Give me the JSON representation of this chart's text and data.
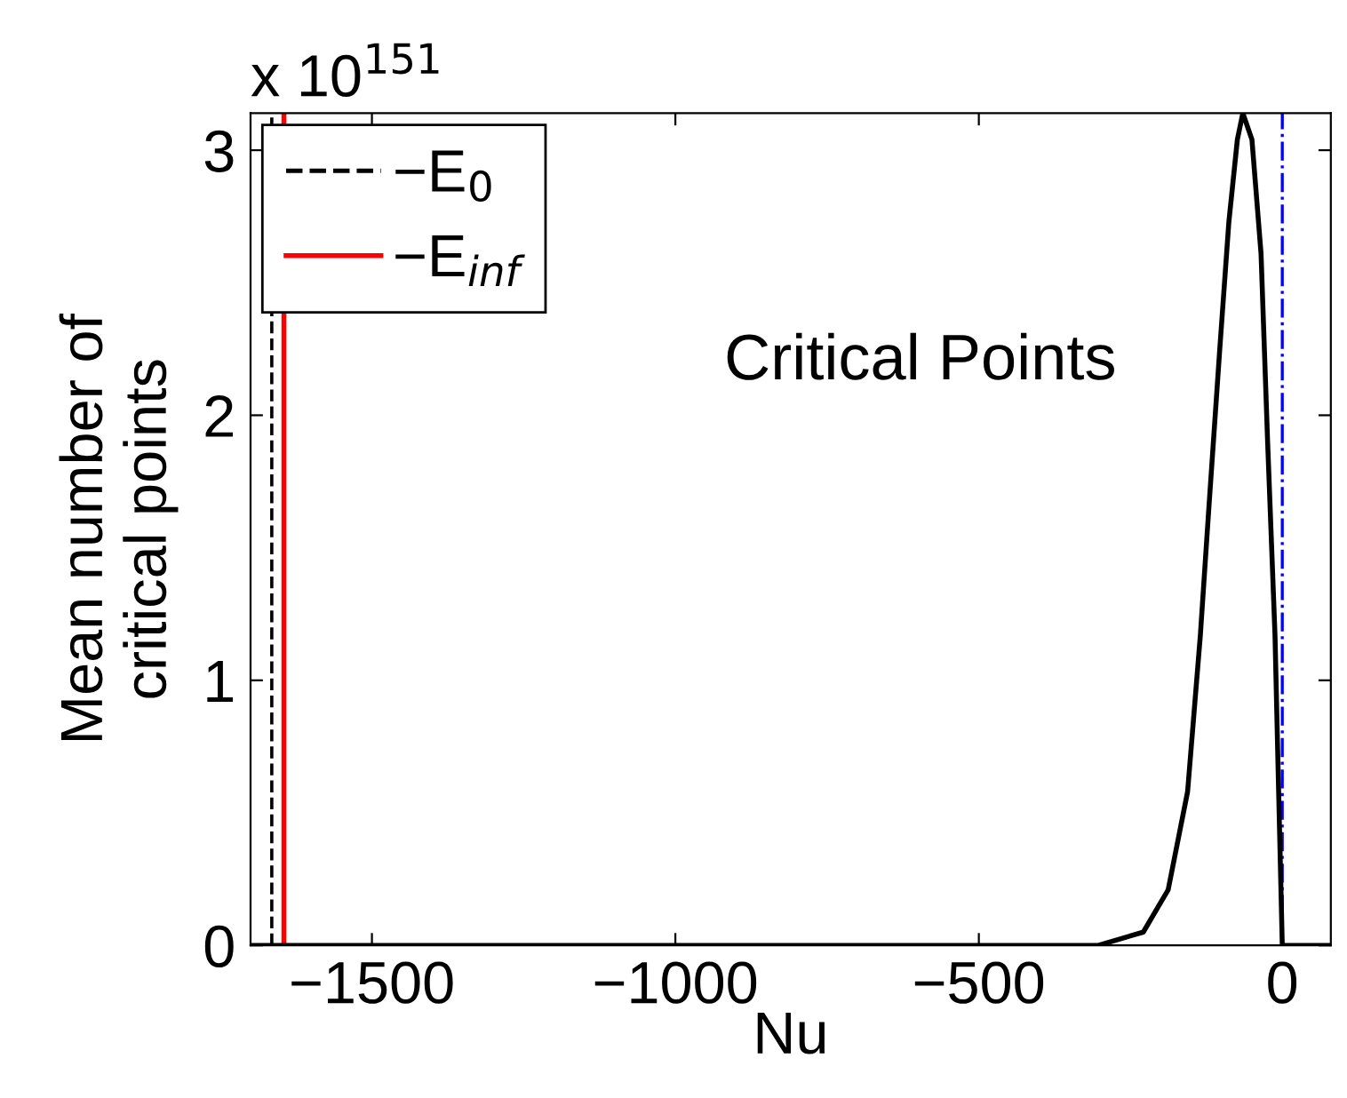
{
  "chart_data": {
    "type": "line",
    "title": "Critical Points",
    "xlabel": "Nu",
    "ylabel": "Mean number of\ncritical points",
    "annotations": [
      "x 10$^{151}$"
    ],
    "x": [
      -1700,
      -600,
      -303,
      -229,
      -188,
      -156,
      -135,
      -121,
      -103,
      -88,
      -74,
      -65,
      -50,
      -35,
      -24,
      -12,
      -6,
      0,
      80
    ],
    "series": [
      {
        "color": "#000000",
        "values": [
          0,
          0,
          0,
          0.05,
          0.21,
          0.58,
          1.17,
          1.65,
          2.25,
          2.73,
          3.04,
          3.14,
          3.04,
          2.61,
          1.89,
          1.17,
          0.58,
          0,
          0
        ]
      }
    ],
    "ref_lines": [
      {
        "axis": "x",
        "value": -1665,
        "label": "−E$_{0}$",
        "color": "#000000",
        "line_style": "dashed"
      },
      {
        "axis": "x",
        "value": -1645,
        "label": "−E$_{inf}$",
        "color": "#ff0000",
        "line_style": "solid"
      },
      {
        "axis": "x",
        "value": 0,
        "color": "#0000ff",
        "line_style": "dashdot"
      }
    ],
    "xlim": [
      -1700,
      80
    ],
    "ylim": [
      0,
      3.14
    ],
    "xticks": [
      -1500,
      -1000,
      -500,
      0
    ],
    "yticks": [
      0,
      1,
      2,
      3
    ],
    "grid": false,
    "legend": "top left",
    "line_style": "solid",
    "marker": "none"
  }
}
